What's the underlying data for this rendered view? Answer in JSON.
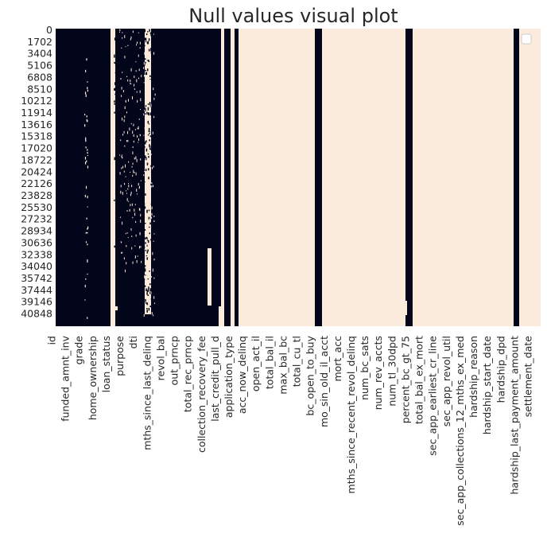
{
  "chart_data": {
    "type": "heatmap",
    "title": "Null values visual plot",
    "xlabel": "",
    "ylabel": "",
    "y_ticks": [
      "0",
      "1702",
      "3404",
      "5106",
      "6808",
      "8510",
      "10212",
      "11914",
      "13616",
      "15318",
      "17020",
      "18722",
      "20424",
      "22126",
      "23828",
      "25530",
      "27232",
      "28934",
      "30636",
      "32338",
      "34040",
      "35742",
      "37444",
      "39146",
      "40848"
    ],
    "x_ticks": [
      "id",
      "funded_amnt_inv",
      "grade",
      "home_ownership",
      "loan_status",
      "purpose",
      "dti",
      "mths_since_last_delinq",
      "revol_bal",
      "out_prncp",
      "total_rec_prncp",
      "collection_recovery_fee",
      "last_credit_pull_d",
      "application_type",
      "acc_now_delinq",
      "open_act_il",
      "total_bal_il",
      "max_bal_bc",
      "total_cu_tl",
      "bc_open_to_buy",
      "mo_sin_old_il_acct",
      "mort_acc",
      "mths_since_recent_revol_delinq",
      "num_bc_sats",
      "num_rev_accts",
      "num_tl_30dpd",
      "percent_bc_gt_75",
      "total_bal_ex_mort",
      "sec_app_earliest_cr_line",
      "sec_app_revol_util",
      "sec_app_collections_12_mths_ex_med",
      "hardship_reason",
      "hardship_start_date",
      "hardship_dpd",
      "hardship_last_payment_amount",
      "settlement_date"
    ],
    "colors": {
      "present": "#03051a",
      "missing": "#faebdd"
    },
    "legend": "top-right"
  }
}
